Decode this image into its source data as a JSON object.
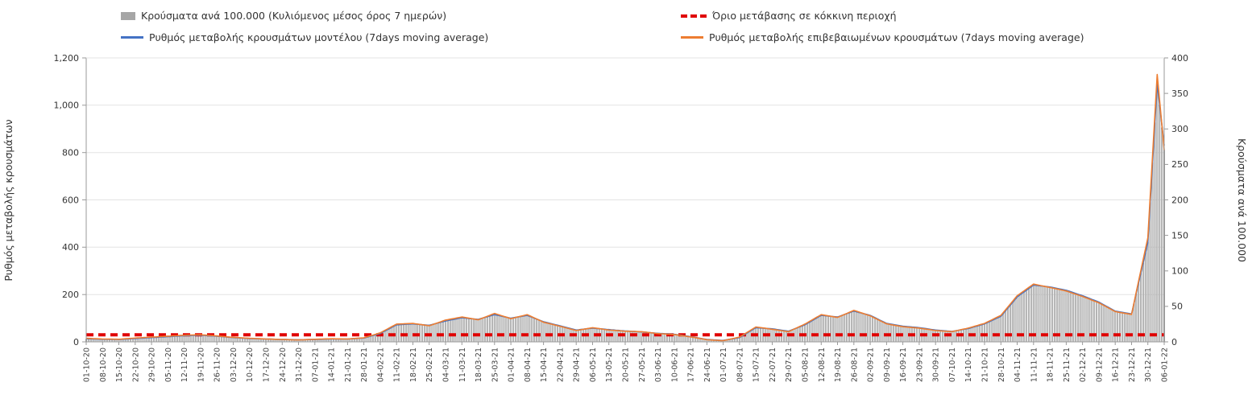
{
  "chart_data": {
    "type": "combo",
    "left_axis": {
      "label": "Ρυθμός μεταβολής κρουσμάτων",
      "min": 0,
      "max": 1200,
      "ticks": [
        0,
        200,
        400,
        600,
        800,
        1000,
        1200
      ],
      "tick_labels": [
        "0",
        "200",
        "400",
        "600",
        "800",
        "1,000",
        "1,200"
      ]
    },
    "right_axis": {
      "label": "Κρούσματα ανά 100.000",
      "min": 0,
      "max": 400,
      "ticks": [
        0,
        50,
        100,
        150,
        200,
        250,
        300,
        350,
        400
      ],
      "tick_labels": [
        "0",
        "50",
        "100",
        "150",
        "200",
        "250",
        "300",
        "350",
        "400"
      ]
    },
    "x_tick_labels": [
      "01-10-20",
      "08-10-20",
      "15-10-20",
      "22-10-20",
      "29-10-20",
      "05-11-20",
      "12-11-20",
      "19-11-20",
      "26-11-20",
      "03-12-20",
      "10-12-20",
      "17-12-20",
      "24-12-20",
      "31-12-20",
      "07-01-21",
      "14-01-21",
      "21-01-21",
      "28-01-21",
      "04-02-21",
      "11-02-21",
      "18-02-21",
      "25-02-21",
      "04-03-21",
      "11-03-21",
      "18-03-21",
      "25-03-21",
      "01-04-21",
      "08-04-21",
      "15-04-21",
      "22-04-21",
      "29-04-21",
      "06-05-21",
      "13-05-21",
      "20-05-21",
      "27-05-21",
      "03-06-21",
      "10-06-21",
      "17-06-21",
      "24-06-21",
      "01-07-21",
      "08-07-21",
      "15-07-21",
      "22-07-21",
      "29-07-21",
      "05-08-21",
      "12-08-21",
      "19-08-21",
      "26-08-21",
      "02-09-21",
      "09-09-21",
      "16-09-21",
      "23-09-21",
      "30-09-21",
      "07-10-21",
      "14-10-21",
      "21-10-21",
      "28-10-21",
      "04-11-21",
      "11-11-21",
      "18-11-21",
      "25-11-21",
      "02-12-21",
      "09-12-21",
      "16-12-21",
      "23-12-21",
      "30-12-21",
      "06-01-22"
    ],
    "grid": "horizontal",
    "legend_position": "top",
    "series": [
      {
        "name": "Κρούσματα ανά 100.000 (Κυλιόμενος μέσος όρος 7 ημερών)",
        "type": "bar",
        "axis": "right",
        "color": "#a6a6a6",
        "points": [
          [
            "01-10-20",
            4
          ],
          [
            "08-10-20",
            4
          ],
          [
            "15-10-20",
            3
          ],
          [
            "22-10-20",
            5
          ],
          [
            "29-10-20",
            6
          ],
          [
            "05-11-20",
            7
          ],
          [
            "12-11-20",
            9
          ],
          [
            "19-11-20",
            10
          ],
          [
            "26-11-20",
            8
          ],
          [
            "03-12-20",
            6
          ],
          [
            "10-12-20",
            5
          ],
          [
            "17-12-20",
            4
          ],
          [
            "24-12-20",
            3
          ],
          [
            "31-12-20",
            3
          ],
          [
            "07-01-21",
            3
          ],
          [
            "14-01-21",
            4
          ],
          [
            "21-01-21",
            4
          ],
          [
            "28-01-21",
            6
          ],
          [
            "04-02-21",
            12
          ],
          [
            "11-02-21",
            24
          ],
          [
            "18-02-21",
            26
          ],
          [
            "25-02-21",
            23
          ],
          [
            "04-03-21",
            30
          ],
          [
            "11-03-21",
            34
          ],
          [
            "18-03-21",
            32
          ],
          [
            "25-03-21",
            39
          ],
          [
            "01-04-21",
            33
          ],
          [
            "08-04-21",
            38
          ],
          [
            "15-04-21",
            28
          ],
          [
            "22-04-21",
            22
          ],
          [
            "29-04-21",
            17
          ],
          [
            "06-05-21",
            19
          ],
          [
            "13-05-21",
            17
          ],
          [
            "20-05-21",
            15
          ],
          [
            "27-05-21",
            14
          ],
          [
            "03-06-21",
            12
          ],
          [
            "10-06-21",
            11
          ],
          [
            "17-06-21",
            7
          ],
          [
            "24-06-21",
            3
          ],
          [
            "01-07-21",
            2
          ],
          [
            "08-07-21",
            6
          ],
          [
            "15-07-21",
            20
          ],
          [
            "22-07-21",
            18
          ],
          [
            "29-07-21",
            15
          ],
          [
            "05-08-21",
            24
          ],
          [
            "12-08-21",
            38
          ],
          [
            "19-08-21",
            35
          ],
          [
            "26-08-21",
            44
          ],
          [
            "02-09-21",
            37
          ],
          [
            "09-09-21",
            26
          ],
          [
            "16-09-21",
            22
          ],
          [
            "23-09-21",
            20
          ],
          [
            "30-09-21",
            17
          ],
          [
            "07-10-21",
            15
          ],
          [
            "14-10-21",
            19
          ],
          [
            "21-10-21",
            26
          ],
          [
            "28-10-21",
            36
          ],
          [
            "04-11-21",
            64
          ],
          [
            "11-11-21",
            80
          ],
          [
            "18-11-21",
            77
          ],
          [
            "25-11-21",
            72
          ],
          [
            "02-12-21",
            65
          ],
          [
            "09-12-21",
            56
          ],
          [
            "16-12-21",
            43
          ],
          [
            "23-12-21",
            39
          ],
          [
            "30-12-21",
            140
          ],
          [
            "03-01-22",
            365
          ],
          [
            "06-01-22",
            270
          ]
        ]
      },
      {
        "name": "Όριο μετάβασης σε κόκκινη περιοχή",
        "type": "threshold",
        "axis": "right",
        "color": "#e00000",
        "value": 10
      },
      {
        "name": "Ρυθμός μεταβολής κρουσμάτων μοντέλου (7days moving average)",
        "type": "line",
        "axis": "left",
        "color": "#4472c4",
        "points": [
          [
            "01-10-20",
            13
          ],
          [
            "08-10-20",
            11
          ],
          [
            "15-10-20",
            10
          ],
          [
            "22-10-20",
            14
          ],
          [
            "29-10-20",
            18
          ],
          [
            "05-11-20",
            22
          ],
          [
            "12-11-20",
            26
          ],
          [
            "19-11-20",
            28
          ],
          [
            "26-11-20",
            24
          ],
          [
            "03-12-20",
            18
          ],
          [
            "10-12-20",
            14
          ],
          [
            "17-12-20",
            12
          ],
          [
            "24-12-20",
            10
          ],
          [
            "31-12-20",
            9
          ],
          [
            "07-01-21",
            10
          ],
          [
            "14-01-21",
            12
          ],
          [
            "21-01-21",
            12
          ],
          [
            "28-01-21",
            16
          ],
          [
            "04-02-21",
            35
          ],
          [
            "11-02-21",
            72
          ],
          [
            "18-02-21",
            76
          ],
          [
            "25-02-21",
            70
          ],
          [
            "04-03-21",
            88
          ],
          [
            "11-03-21",
            102
          ],
          [
            "18-03-21",
            95
          ],
          [
            "25-03-21",
            115
          ],
          [
            "01-04-21",
            100
          ],
          [
            "08-04-21",
            112
          ],
          [
            "15-04-21",
            85
          ],
          [
            "22-04-21",
            68
          ],
          [
            "29-04-21",
            50
          ],
          [
            "06-05-21",
            58
          ],
          [
            "13-05-21",
            52
          ],
          [
            "20-05-21",
            46
          ],
          [
            "27-05-21",
            42
          ],
          [
            "03-06-21",
            36
          ],
          [
            "10-06-21",
            32
          ],
          [
            "17-06-21",
            22
          ],
          [
            "24-06-21",
            10
          ],
          [
            "01-07-21",
            6
          ],
          [
            "08-07-21",
            18
          ],
          [
            "15-07-21",
            60
          ],
          [
            "22-07-21",
            55
          ],
          [
            "29-07-21",
            45
          ],
          [
            "05-08-21",
            72
          ],
          [
            "12-08-21",
            112
          ],
          [
            "19-08-21",
            105
          ],
          [
            "26-08-21",
            130
          ],
          [
            "02-09-21",
            112
          ],
          [
            "09-09-21",
            78
          ],
          [
            "16-09-21",
            66
          ],
          [
            "23-09-21",
            60
          ],
          [
            "30-09-21",
            50
          ],
          [
            "07-10-21",
            44
          ],
          [
            "14-10-21",
            56
          ],
          [
            "21-10-21",
            76
          ],
          [
            "28-10-21",
            108
          ],
          [
            "04-11-21",
            190
          ],
          [
            "11-11-21",
            240
          ],
          [
            "18-11-21",
            232
          ],
          [
            "25-11-21",
            218
          ],
          [
            "02-12-21",
            195
          ],
          [
            "09-12-21",
            168
          ],
          [
            "16-12-21",
            130
          ],
          [
            "23-12-21",
            118
          ],
          [
            "30-12-21",
            420
          ],
          [
            "03-01-22",
            1090
          ],
          [
            "06-01-22",
            830
          ]
        ]
      },
      {
        "name": "Ρυθμός μεταβολής επιβεβαιωμένων κρουσμάτων (7days moving average)",
        "type": "line",
        "axis": "left",
        "color": "#ed7d31",
        "points": [
          [
            "01-10-20",
            15
          ],
          [
            "08-10-20",
            12
          ],
          [
            "15-10-20",
            11
          ],
          [
            "22-10-20",
            16
          ],
          [
            "29-10-20",
            20
          ],
          [
            "05-11-20",
            24
          ],
          [
            "12-11-20",
            28
          ],
          [
            "19-11-20",
            30
          ],
          [
            "26-11-20",
            25
          ],
          [
            "03-12-20",
            19
          ],
          [
            "10-12-20",
            15
          ],
          [
            "17-12-20",
            12
          ],
          [
            "24-12-20",
            10
          ],
          [
            "31-12-20",
            8
          ],
          [
            "07-01-21",
            11
          ],
          [
            "14-01-21",
            13
          ],
          [
            "21-01-21",
            12
          ],
          [
            "28-01-21",
            17
          ],
          [
            "04-02-21",
            38
          ],
          [
            "11-02-21",
            75
          ],
          [
            "18-02-21",
            78
          ],
          [
            "25-02-21",
            68
          ],
          [
            "04-03-21",
            92
          ],
          [
            "11-03-21",
            105
          ],
          [
            "18-03-21",
            93
          ],
          [
            "25-03-21",
            120
          ],
          [
            "01-04-21",
            98
          ],
          [
            "08-04-21",
            115
          ],
          [
            "15-04-21",
            83
          ],
          [
            "22-04-21",
            66
          ],
          [
            "29-04-21",
            48
          ],
          [
            "06-05-21",
            60
          ],
          [
            "13-05-21",
            50
          ],
          [
            "20-05-21",
            45
          ],
          [
            "27-05-21",
            43
          ],
          [
            "03-06-21",
            35
          ],
          [
            "10-06-21",
            31
          ],
          [
            "17-06-21",
            21
          ],
          [
            "24-06-21",
            9
          ],
          [
            "01-07-21",
            5
          ],
          [
            "08-07-21",
            20
          ],
          [
            "15-07-21",
            63
          ],
          [
            "22-07-21",
            53
          ],
          [
            "29-07-21",
            43
          ],
          [
            "05-08-21",
            75
          ],
          [
            "12-08-21",
            115
          ],
          [
            "19-08-21",
            103
          ],
          [
            "26-08-21",
            133
          ],
          [
            "02-09-21",
            110
          ],
          [
            "09-09-21",
            76
          ],
          [
            "16-09-21",
            64
          ],
          [
            "23-09-21",
            58
          ],
          [
            "30-09-21",
            48
          ],
          [
            "07-10-21",
            43
          ],
          [
            "14-10-21",
            58
          ],
          [
            "21-10-21",
            78
          ],
          [
            "28-10-21",
            112
          ],
          [
            "04-11-21",
            195
          ],
          [
            "11-11-21",
            244
          ],
          [
            "18-11-21",
            230
          ],
          [
            "25-11-21",
            215
          ],
          [
            "02-12-21",
            192
          ],
          [
            "09-12-21",
            165
          ],
          [
            "16-12-21",
            128
          ],
          [
            "23-12-21",
            116
          ],
          [
            "30-12-21",
            440
          ],
          [
            "03-01-22",
            1130
          ],
          [
            "06-01-22",
            810
          ]
        ]
      }
    ]
  }
}
